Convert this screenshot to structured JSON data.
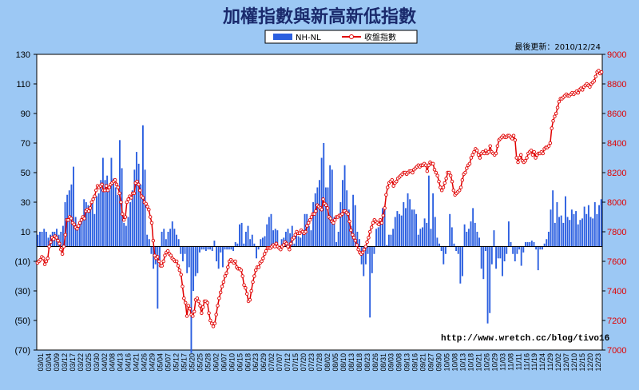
{
  "chart_data": {
    "type": "bar+line",
    "title": "加權指數與新高新低指數",
    "update_label": "最後更新：2010/12/24",
    "source": "http://www.wretch.cc/blog/tivo16",
    "legend": {
      "bar": "NH-NL",
      "line": "收盤指數",
      "placement": "top-center"
    },
    "left_axis": {
      "min": -70,
      "max": 130,
      "ticks": [
        "(70)",
        "(50)",
        "(30)",
        "(10)",
        "10",
        "30",
        "50",
        "70",
        "90",
        "110",
        "130"
      ]
    },
    "right_axis": {
      "min": 7000,
      "max": 9000,
      "ticks": [
        "7000",
        "7200",
        "7400",
        "7600",
        "7800",
        "8000",
        "8200",
        "8400",
        "8600",
        "8800",
        "9000"
      ]
    },
    "grid": false,
    "date_labels": [
      "03/01",
      "03/04",
      "03/09",
      "03/12",
      "03/17",
      "03/22",
      "03/25",
      "03/30",
      "04/02",
      "04/08",
      "04/13",
      "04/16",
      "04/21",
      "04/26",
      "04/29",
      "05/04",
      "05/07",
      "05/12",
      "05/17",
      "05/20",
      "05/25",
      "05/28",
      "06/02",
      "06/07",
      "06/10",
      "06/15",
      "06/18",
      "06/23",
      "06/29",
      "07/02",
      "07/07",
      "07/12",
      "07/15",
      "07/20",
      "07/23",
      "07/28",
      "08/02",
      "08/05",
      "08/10",
      "08/13",
      "08/18",
      "08/23",
      "08/26",
      "08/31",
      "09/03",
      "09/08",
      "09/13",
      "09/16",
      "09/21",
      "09/27",
      "09/30",
      "10/05",
      "10/08",
      "10/13",
      "10/18",
      "10/21",
      "10/26",
      "10/29",
      "11/03",
      "11/08",
      "11/11",
      "11/16",
      "11/19",
      "11/24",
      "11/29",
      "12/02",
      "12/07",
      "12/10",
      "12/15",
      "12/20",
      "12/23"
    ],
    "nh_nl": [
      8,
      10,
      10,
      12,
      10,
      6,
      8,
      10,
      10,
      12,
      8,
      10,
      14,
      30,
      35,
      38,
      42,
      54,
      20,
      12,
      15,
      20,
      32,
      30,
      28,
      26,
      30,
      22,
      34,
      36,
      45,
      60,
      45,
      48,
      38,
      60,
      46,
      40,
      35,
      72,
      53,
      16,
      14,
      20,
      30,
      38,
      52,
      64,
      56,
      42,
      82,
      52,
      8,
      5,
      -5,
      -15,
      -12,
      -42,
      -10,
      10,
      12,
      5,
      10,
      12,
      17,
      12,
      8,
      5,
      -5,
      -10,
      -5,
      -18,
      -14,
      -72,
      -30,
      -20,
      -18,
      -4,
      -2,
      -2,
      -3,
      -2,
      -2,
      -3,
      4,
      -10,
      -15,
      -4,
      -14,
      -2,
      -2,
      -2,
      -2,
      -3,
      3,
      2,
      15,
      16,
      2,
      10,
      14,
      5,
      8,
      2,
      -8,
      -2,
      5,
      6,
      7,
      15,
      20,
      22,
      11,
      12,
      11,
      -1,
      5,
      6,
      10,
      12,
      9,
      14,
      2,
      10,
      7,
      6,
      11,
      22,
      22,
      14,
      11,
      30,
      36,
      40,
      45,
      60,
      70,
      40,
      40,
      55,
      52,
      20,
      3,
      10,
      30,
      45,
      55,
      38,
      25,
      14,
      35,
      28,
      10,
      5,
      -12,
      -20,
      -12,
      -5,
      -48,
      -18,
      -5,
      12,
      13,
      18,
      26,
      25,
      1,
      8,
      8,
      12,
      20,
      24,
      22,
      21,
      30,
      26,
      36,
      32,
      25,
      25,
      22,
      8,
      12,
      13,
      19,
      16,
      48,
      12,
      36,
      20,
      6,
      2,
      -3,
      -12,
      -5,
      0,
      22,
      13,
      2,
      -3,
      -5,
      -25,
      -20,
      15,
      10,
      12,
      17,
      26,
      16,
      10,
      6,
      -15,
      -22,
      -3,
      -52,
      -45,
      -12,
      11,
      -15,
      -8,
      -8,
      -20,
      -10,
      -5,
      17,
      3,
      -5,
      -10,
      -5,
      -2,
      -13,
      -4,
      3,
      3,
      3,
      4,
      3,
      -2,
      -16,
      -2,
      -2,
      2,
      5,
      10,
      25,
      38,
      16,
      30,
      20,
      21,
      16,
      34,
      20,
      18,
      25,
      22,
      24,
      15,
      18,
      19,
      27,
      22,
      28,
      20,
      19,
      30,
      22,
      28,
      32
    ],
    "close": [
      7590,
      7600,
      7610,
      7630,
      7620,
      7580,
      7600,
      7620,
      7700,
      7730,
      7760,
      7750,
      7770,
      7760,
      7740,
      7720,
      7680,
      7650,
      7700,
      7780,
      7880,
      7880,
      7900,
      7890,
      7860,
      7850,
      7830,
      7820,
      7840,
      7860,
      7880,
      7900,
      7890,
      7940,
      7950,
      7940,
      7960,
      8000,
      8020,
      8040,
      8080,
      8110,
      8100,
      8110,
      8120,
      8080,
      8080,
      8110,
      8080,
      8100,
      8120,
      8130,
      8140,
      8150,
      8120,
      8100,
      8060,
      8000,
      7920,
      7880,
      7900,
      8000,
      8020,
      8040,
      8030,
      8060,
      8060,
      8130,
      8140,
      8120,
      8080,
      8040,
      8030,
      8000,
      7990,
      7970,
      7950,
      7900,
      7860,
      7740,
      7640,
      7620,
      7630,
      7600,
      7570,
      7570,
      7600,
      7640,
      7660,
      7670,
      7650,
      7640,
      7620,
      7610,
      7600,
      7600,
      7570,
      7540,
      7510,
      7430,
      7350,
      7320,
      7230,
      7300,
      7280,
      7240,
      7230,
      7260,
      7340,
      7350,
      7330,
      7300,
      7250,
      7290,
      7330,
      7330,
      7320,
      7250,
      7200,
      7180,
      7160,
      7180,
      7240,
      7300,
      7350,
      7390,
      7430,
      7460,
      7500,
      7520,
      7560,
      7600,
      7610,
      7600,
      7590,
      7600,
      7560,
      7550,
      7550,
      7540,
      7500,
      7440,
      7420,
      7380,
      7330,
      7340,
      7400,
      7460,
      7500,
      7540,
      7560,
      7560,
      7590,
      7600,
      7620,
      7650,
      7670,
      7690,
      7690,
      7690,
      7700,
      7710,
      7700,
      7720,
      7700,
      7690,
      7680,
      7700,
      7710,
      7730,
      7720,
      7700,
      7680,
      7720,
      7750,
      7760,
      7780,
      7800,
      7790,
      7790,
      7810,
      7800,
      7790,
      7800,
      7840,
      7860,
      7880,
      7900,
      7920,
      7920,
      7940,
      7980,
      7970,
      7960,
      7950,
      8020,
      7990,
      7980,
      7960,
      7900,
      7890,
      7870,
      7860,
      7880,
      7900,
      7900,
      7910,
      7910,
      7920,
      7940,
      7940,
      7930,
      7920,
      7870,
      7810,
      7780,
      7760,
      7740,
      7710,
      7680,
      7660,
      7650,
      7660,
      7680,
      7700,
      7730,
      7760,
      7800,
      7830,
      7860,
      7880,
      7870,
      7860,
      7850,
      7880,
      7860,
      7910,
      7960,
      8050,
      8100,
      8130,
      8140,
      8150,
      8110,
      8130,
      8140,
      8160,
      8170,
      8180,
      8190,
      8200,
      8200,
      8190,
      8200,
      8210,
      8210,
      8200,
      8220,
      8230,
      8240,
      8250,
      8240,
      8250,
      8250,
      8260,
      8250,
      8210,
      8250,
      8270,
      8260,
      8260,
      8220,
      8200,
      8180,
      8140,
      8100,
      8080,
      8100,
      8130,
      8160,
      8200,
      8200,
      8180,
      8140,
      8080,
      8050,
      8060,
      8070,
      8080,
      8100,
      8150,
      8190,
      8200,
      8230,
      8250,
      8260,
      8300,
      8320,
      8340,
      8360,
      8350,
      8320,
      8300,
      8330,
      8340,
      8330,
      8350,
      8330,
      8340,
      8380,
      8340,
      8330,
      8320,
      8330,
      8380,
      8420,
      8430,
      8440,
      8450,
      8440,
      8440,
      8450,
      8450,
      8440,
      8430,
      8450,
      8420,
      8300,
      8270,
      8300,
      8320,
      8280,
      8270,
      8280,
      8300,
      8330,
      8340,
      8350,
      8320,
      8340,
      8300,
      8320,
      8330,
      8330,
      8340,
      8330,
      8360,
      8370,
      8370,
      8380,
      8400,
      8500,
      8550,
      8580,
      8600,
      8640,
      8680,
      8700,
      8700,
      8710,
      8720,
      8730,
      8720,
      8720,
      8730,
      8740,
      8730,
      8740,
      8750,
      8740,
      8760,
      8770,
      8760,
      8780,
      8790,
      8800,
      8790,
      8780,
      8800,
      8810,
      8820,
      8850,
      8880,
      8890,
      8870,
      8880
    ]
  }
}
